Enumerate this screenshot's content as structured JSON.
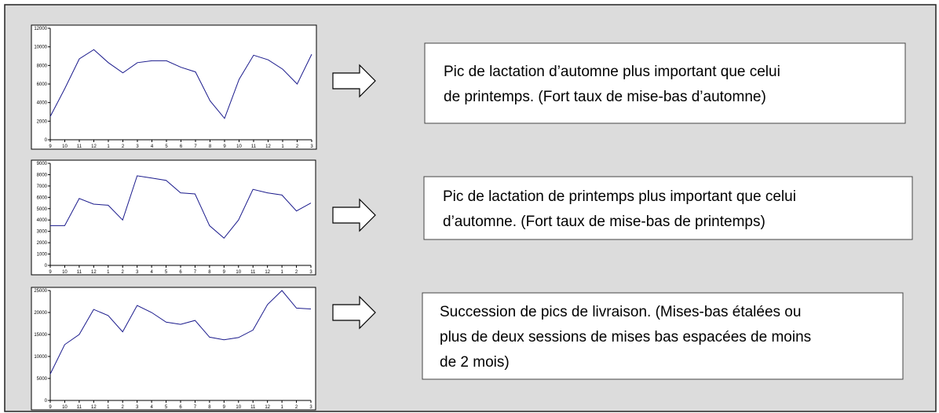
{
  "chart_data": [
    {
      "type": "line",
      "categories": [
        "9",
        "10",
        "11",
        "12",
        "1",
        "2",
        "3",
        "4",
        "5",
        "6",
        "7",
        "8",
        "9",
        "10",
        "11",
        "12",
        "1",
        "2",
        "3"
      ],
      "values": [
        2500,
        5500,
        8700,
        9700,
        8300,
        7200,
        8300,
        8500,
        8500,
        7800,
        7300,
        4200,
        2300,
        6500,
        9100,
        8600,
        7600,
        6000,
        9200
      ],
      "color": "#1a1a8c",
      "ylim": [
        0,
        12000
      ],
      "yticks": [
        0,
        2000,
        4000,
        6000,
        8000,
        10000,
        12000
      ]
    },
    {
      "type": "line",
      "categories": [
        "9",
        "10",
        "11",
        "12",
        "1",
        "2",
        "3",
        "4",
        "5",
        "6",
        "7",
        "8",
        "9",
        "10",
        "11",
        "12",
        "1",
        "2",
        "3"
      ],
      "values": [
        3500,
        3500,
        5900,
        5400,
        5300,
        4000,
        7900,
        7700,
        7500,
        6400,
        6300,
        3500,
        2400,
        4000,
        6700,
        6400,
        6200,
        4800,
        5500
      ],
      "color": "#1a1a8c",
      "ylim": [
        0,
        9000
      ],
      "yticks": [
        0,
        1000,
        2000,
        3000,
        4000,
        5000,
        6000,
        7000,
        8000,
        9000
      ]
    },
    {
      "type": "line",
      "categories": [
        "9",
        "10",
        "11",
        "12",
        "1",
        "2",
        "3",
        "4",
        "5",
        "6",
        "7",
        "8",
        "9",
        "10",
        "11",
        "12",
        "1",
        "2",
        "3"
      ],
      "values": [
        6000,
        12700,
        15000,
        20700,
        19300,
        15600,
        21600,
        20000,
        17800,
        17300,
        18200,
        14400,
        13800,
        14300,
        16000,
        21800,
        25000,
        21000,
        20800
      ],
      "color": "#1a1a8c",
      "ylim": [
        0,
        25000
      ],
      "yticks": [
        0,
        5000,
        10000,
        15000,
        20000,
        25000
      ]
    }
  ],
  "notes": [
    {
      "lines": [
        "Pic de lactation d’automne plus important que celui",
        "de printemps. (Fort taux de mise-bas d’automne)"
      ]
    },
    {
      "lines": [
        "Pic de lactation de printemps plus important que celui",
        "d’automne. (Fort taux de mise-bas de printemps)"
      ]
    },
    {
      "lines": [
        "Succession de pics de livraison. (Mises-bas étalées ou",
        "plus de deux sessions de mises bas espacées de moins",
        "de 2 mois)"
      ]
    }
  ]
}
